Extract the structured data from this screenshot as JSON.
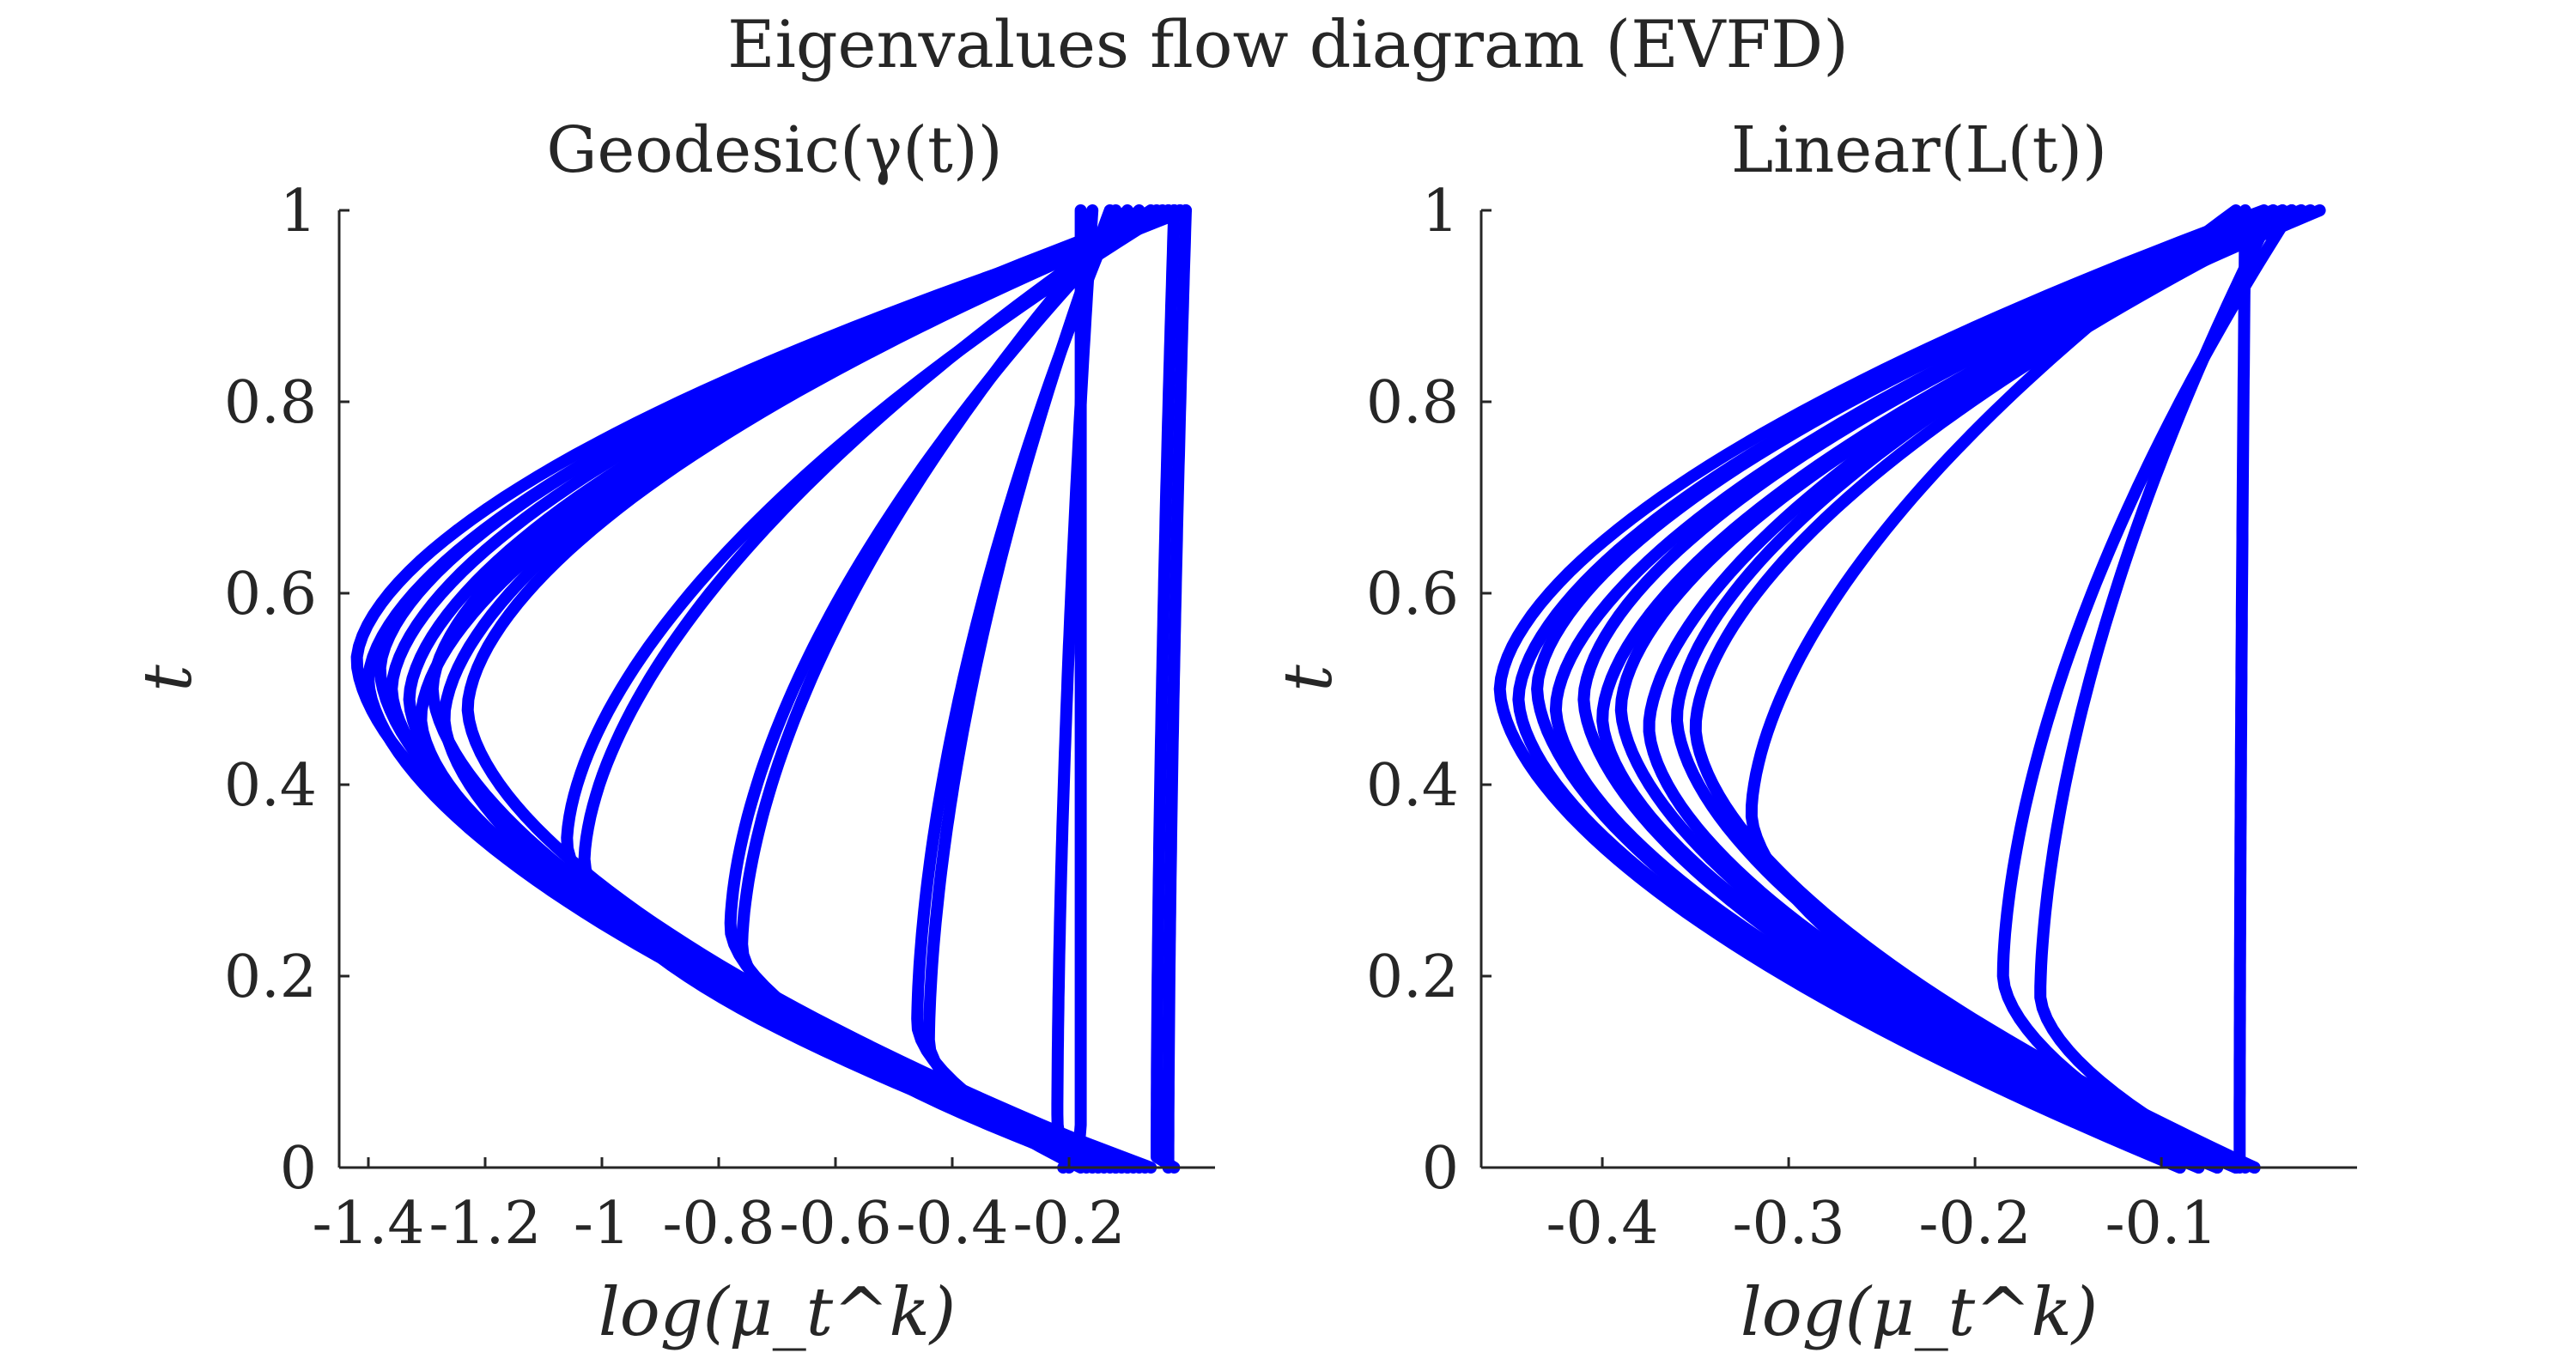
{
  "figure": {
    "title": "Eigenvalues flow diagram (EVFD)",
    "line_color": "#0000ff",
    "axis_color": "#262626"
  },
  "chart_data": [
    {
      "type": "line",
      "title": "Geodesic(γ(t))",
      "xlabel": "log(μ_t^k)",
      "ylabel": "t",
      "xlim": [
        -1.45,
        0.05
      ],
      "ylim": [
        0,
        1
      ],
      "xticks": [
        -1.4,
        -1.2,
        -1,
        -0.8,
        -0.6,
        -0.4,
        -0.2
      ],
      "xtick_labels": [
        "-1.4",
        "-1.2",
        "-1",
        "-0.8",
        "-0.6",
        "-0.4",
        "-0.2"
      ],
      "yticks": [
        0,
        0.2,
        0.4,
        0.6,
        0.8,
        1
      ],
      "ytick_labels": [
        "0",
        "0.2",
        "0.4",
        "0.6",
        "0.8",
        "1"
      ],
      "grid": false,
      "legend": "none",
      "curve_params": [
        {
          "minx": -1.42,
          "tmin": 0.53,
          "left": -0.08,
          "right": 0.0
        },
        {
          "minx": -1.4,
          "tmin": 0.51,
          "left": -0.1,
          "right": -0.02
        },
        {
          "minx": -1.38,
          "tmin": 0.52,
          "left": -0.12,
          "right": -0.01
        },
        {
          "minx": -1.36,
          "tmin": 0.5,
          "left": -0.06,
          "right": -0.04
        },
        {
          "minx": -1.33,
          "tmin": 0.49,
          "left": -0.14,
          "right": -0.03
        },
        {
          "minx": -1.31,
          "tmin": 0.47,
          "left": -0.09,
          "right": 0.0
        },
        {
          "minx": -1.29,
          "tmin": 0.5,
          "left": -0.11,
          "right": -0.02
        },
        {
          "minx": -1.27,
          "tmin": 0.47,
          "left": -0.16,
          "right": -0.05
        },
        {
          "minx": -1.23,
          "tmin": 0.48,
          "left": -0.07,
          "right": -0.01
        },
        {
          "minx": -1.06,
          "tmin": 0.34,
          "left": -0.12,
          "right": -0.03
        },
        {
          "minx": -1.03,
          "tmin": 0.32,
          "left": -0.1,
          "right": -0.06
        },
        {
          "minx": -0.78,
          "tmin": 0.25,
          "left": -0.13,
          "right": -0.08
        },
        {
          "minx": -0.76,
          "tmin": 0.23,
          "left": -0.15,
          "right": -0.1
        },
        {
          "minx": -0.46,
          "tmin": 0.15,
          "left": -0.17,
          "right": -0.12
        },
        {
          "minx": -0.44,
          "tmin": 0.13,
          "left": -0.18,
          "right": -0.13
        },
        {
          "minx": -0.22,
          "tmin": 0.05,
          "left": -0.2,
          "right": -0.16
        },
        {
          "minx": -0.18,
          "tmin": 0.04,
          "left": -0.21,
          "right": -0.18
        },
        {
          "minx": -0.05,
          "tmin": 0.01,
          "left": -0.02,
          "right": -0.02
        },
        {
          "minx": -0.03,
          "tmin": 0.0,
          "left": -0.02,
          "right": 0.0
        }
      ]
    },
    {
      "type": "line",
      "title": "Linear(L(t))",
      "xlabel": "log(μ_t^k)",
      "ylabel": "t",
      "xlim": [
        -0.465,
        0.005
      ],
      "ylim": [
        0,
        1
      ],
      "xticks": [
        -0.4,
        -0.3,
        -0.2,
        -0.1
      ],
      "xtick_labels": [
        "-0.4",
        "-0.3",
        "-0.2",
        "-0.1"
      ],
      "yticks": [
        0,
        0.2,
        0.4,
        0.6,
        0.8,
        1
      ],
      "ytick_labels": [
        "0",
        "0.2",
        "0.4",
        "0.6",
        "0.8",
        "1"
      ],
      "grid": false,
      "legend": "none",
      "curve_params": [
        {
          "minx": -0.455,
          "tmin": 0.5,
          "left": -0.09,
          "right": -0.045
        },
        {
          "minx": -0.445,
          "tmin": 0.49,
          "left": -0.08,
          "right": -0.04
        },
        {
          "minx": -0.435,
          "tmin": 0.5,
          "left": -0.09,
          "right": -0.035
        },
        {
          "minx": -0.425,
          "tmin": 0.48,
          "left": -0.07,
          "right": -0.03
        },
        {
          "minx": -0.41,
          "tmin": 0.49,
          "left": -0.08,
          "right": -0.025
        },
        {
          "minx": -0.4,
          "tmin": 0.47,
          "left": -0.06,
          "right": -0.02
        },
        {
          "minx": -0.39,
          "tmin": 0.48,
          "left": -0.07,
          "right": -0.015
        },
        {
          "minx": -0.375,
          "tmin": 0.46,
          "left": -0.055,
          "right": -0.035
        },
        {
          "minx": -0.36,
          "tmin": 0.47,
          "left": -0.06,
          "right": -0.03
        },
        {
          "minx": -0.35,
          "tmin": 0.46,
          "left": -0.05,
          "right": -0.025
        },
        {
          "minx": -0.32,
          "tmin": 0.37,
          "left": -0.05,
          "right": -0.06
        },
        {
          "minx": -0.185,
          "tmin": 0.2,
          "left": -0.07,
          "right": -0.03
        },
        {
          "minx": -0.165,
          "tmin": 0.18,
          "left": -0.06,
          "right": -0.04
        },
        {
          "minx": -0.058,
          "tmin": 0.0,
          "left": -0.045,
          "right": -0.055
        }
      ]
    }
  ]
}
